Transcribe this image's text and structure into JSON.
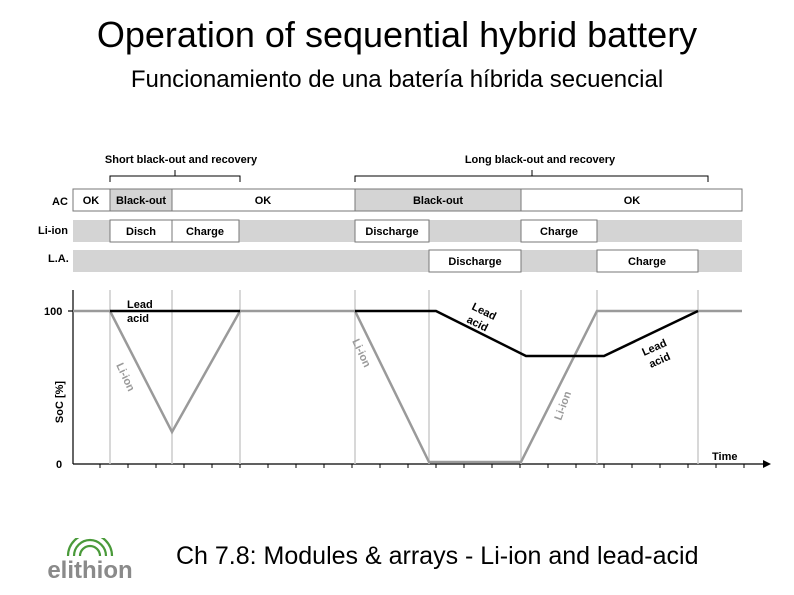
{
  "title": "Operation of sequential hybrid battery",
  "subtitle": "Funcionamiento de una batería híbrida secuencial",
  "footer": "Ch 7.8: Modules & arrays - Li-ion and lead-acid",
  "logo_text": "elithion",
  "diagram": {
    "short_label": "Short black-out and recovery",
    "long_label": "Long black-out and recovery",
    "rows": {
      "ac": "AC",
      "liion": "Li-ion",
      "la": "L.A."
    },
    "ac_cells": [
      "OK",
      "Black-out",
      "OK",
      "Black-out",
      "OK"
    ],
    "liion_cells": [
      "Disch",
      "Charge",
      "Discharge",
      "Charge"
    ],
    "la_cells": [
      "Discharge",
      "Charge"
    ],
    "y_axis_label": "SoC [%]",
    "y_tick_100": "100",
    "y_tick_0": "0",
    "x_axis_label": "Time",
    "curves": {
      "lead_acid_1_line1": "Lead",
      "lead_acid_1_line2": "acid",
      "li_ion_1": "Li-ion",
      "li_ion_2": "Li-ion",
      "lead_acid_2_line1": "Lead",
      "lead_acid_2_line2": "acid",
      "li_ion_3": "Li-ion",
      "lead_acid_3_line1": "Lead",
      "lead_acid_3_line2": "acid"
    },
    "colors": {
      "lead_acid": "#000000",
      "li_ion": "#9a9a9a",
      "band": "#d4d4d4",
      "logo_green": "#4a9a3a",
      "logo_gray": "#8a8a8a"
    }
  }
}
